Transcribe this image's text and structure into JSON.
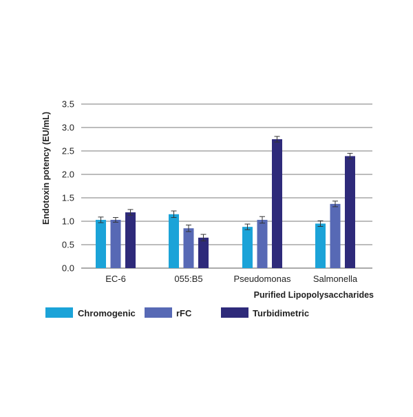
{
  "chart_data": {
    "type": "bar",
    "title": "",
    "xlabel": "Purified Lipopolysaccharides",
    "ylabel": "Endotoxin potency (EU/mL)",
    "ylim": [
      0,
      3.5
    ],
    "yticks": [
      "0.0",
      "0.5",
      "1.0",
      "1.5",
      "2.0",
      "2.5",
      "3.0",
      "3.5"
    ],
    "grid": "horizontal",
    "legend_position": "bottom",
    "categories": [
      "EC-6",
      "055:B5",
      "Pseudomonas",
      "Salmonella"
    ],
    "series": [
      {
        "name": "Chromogenic",
        "color": "#1ba3d8",
        "values": [
          1.03,
          1.15,
          0.88,
          0.95
        ],
        "errors": [
          0.06,
          0.07,
          0.06,
          0.06
        ]
      },
      {
        "name": "rFC",
        "color": "#5769b5",
        "values": [
          1.03,
          0.85,
          1.03,
          1.37
        ],
        "errors": [
          0.05,
          0.07,
          0.07,
          0.06
        ]
      },
      {
        "name": "Turbidimetric",
        "color": "#2e2a7a",
        "values": [
          1.19,
          0.65,
          2.75,
          2.39
        ],
        "errors": [
          0.06,
          0.07,
          0.06,
          0.06
        ]
      }
    ]
  }
}
